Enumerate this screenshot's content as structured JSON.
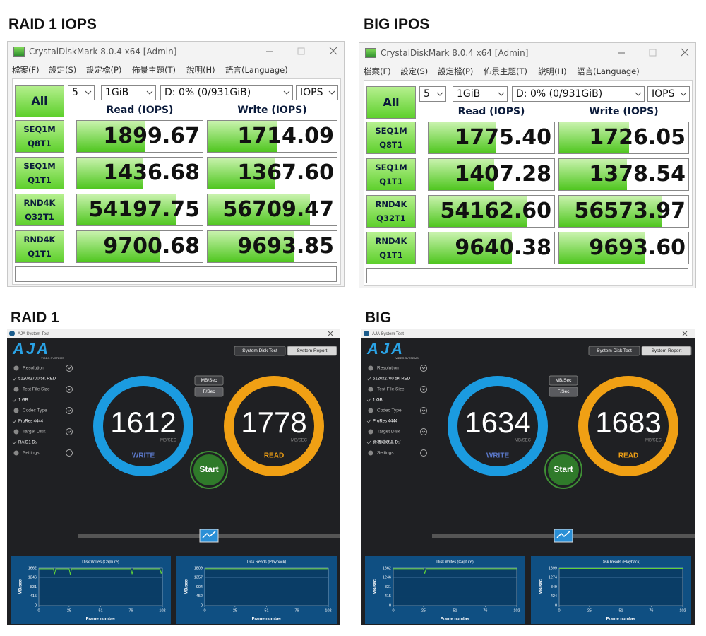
{
  "panels": [
    {
      "label": "RAID 1 IOPS",
      "type": "crystaldiskmark",
      "window": {
        "title": "CrystalDiskMark 8.0.4 x64 [Admin]",
        "menu": [
          "檔案(F)",
          "設定(S)",
          "設定檔(P)",
          "佈景主題(T)",
          "說明(H)",
          "語言(Language)"
        ],
        "all": "All",
        "count": "5",
        "size": "1GiB",
        "drive": "D: 0% (0/931GiB)",
        "unit": "IOPS",
        "read_header": "Read (IOPS)",
        "write_header": "Write (IOPS)",
        "rows": [
          {
            "test": "SEQ1M",
            "params": "Q8T1",
            "read": "1899.67",
            "write": "1714.09"
          },
          {
            "test": "SEQ1M",
            "params": "Q1T1",
            "read": "1436.68",
            "write": "1367.60"
          },
          {
            "test": "RND4K",
            "params": "Q32T1",
            "read": "54197.75",
            "write": "56709.47"
          },
          {
            "test": "RND4K",
            "params": "Q1T1",
            "read": "9700.68",
            "write": "9693.85"
          }
        ]
      }
    },
    {
      "label": "BIG IPOS",
      "type": "crystaldiskmark",
      "window": {
        "title": "CrystalDiskMark 8.0.4 x64 [Admin]",
        "menu": [
          "檔案(F)",
          "設定(S)",
          "設定檔(P)",
          "佈景主題(T)",
          "說明(H)",
          "語言(Language)"
        ],
        "all": "All",
        "count": "5",
        "size": "1GiB",
        "drive": "D: 0% (0/931GiB)",
        "unit": "IOPS",
        "read_header": "Read (IOPS)",
        "write_header": "Write (IOPS)",
        "rows": [
          {
            "test": "SEQ1M",
            "params": "Q8T1",
            "read": "1775.40",
            "write": "1726.05"
          },
          {
            "test": "SEQ1M",
            "params": "Q1T1",
            "read": "1407.28",
            "write": "1378.54"
          },
          {
            "test": "RND4K",
            "params": "Q32T1",
            "read": "54162.60",
            "write": "56573.97"
          },
          {
            "test": "RND4K",
            "params": "Q1T1",
            "read": "9640.38",
            "write": "9693.60"
          }
        ]
      }
    },
    {
      "label": "RAID 1",
      "type": "aja",
      "window": {
        "title": "AJA System Test",
        "logo": "AJA",
        "logo_sub": "VIDEO SYSTEMS",
        "buttons": [
          "System Disk Test",
          "System Report"
        ],
        "settings": [
          {
            "label": "Resolution",
            "value": "5120x2700 5K RED"
          },
          {
            "label": "Test File Size",
            "value": "1 GB"
          },
          {
            "label": "Codec Type",
            "value": "ProRes 4444"
          },
          {
            "label": "Target Disk",
            "value": "RAID1 D:/"
          }
        ],
        "settings_link": "Settings",
        "rate_units": [
          "MB/Sec",
          "F/Sec"
        ],
        "write": {
          "value": "1612",
          "unit": "MB/SEC",
          "label": "WRITE"
        },
        "read": {
          "value": "1778",
          "unit": "MB/SEC",
          "label": "READ"
        },
        "start": "Start",
        "charts": [
          {
            "type": "line",
            "title": "Disk Writes (Capture)",
            "ylabel": "MB/sec",
            "xlabel": "Frame number",
            "xlim": [
              0,
              102
            ],
            "ylim": [
              0,
              1662
            ],
            "xticks": [
              0,
              25,
              51,
              76,
              102
            ],
            "yticks": [
              0,
              415,
              831,
              1246,
              1662
            ],
            "color": "#5fd13a",
            "x": [
              0,
              12,
              13,
              14,
              25,
              26,
              27,
              76,
              77,
              78,
              100,
              101,
              102
            ],
            "values": [
              1630,
              1630,
              1400,
              1630,
              1630,
              1380,
              1630,
              1630,
              1400,
              1630,
              1630,
              1420,
              1630
            ]
          },
          {
            "type": "line",
            "title": "Disk Reads (Playback)",
            "ylabel": "MB/sec",
            "xlabel": "Frame number",
            "xlim": [
              0,
              102
            ],
            "ylim": [
              0,
              1809
            ],
            "xticks": [
              0,
              25,
              51,
              76,
              102
            ],
            "yticks": [
              0,
              452,
              904,
              1357,
              1809
            ],
            "color": "#5fd13a",
            "x": [
              0,
              51,
              102
            ],
            "values": [
              1780,
              1775,
              1780
            ]
          }
        ]
      }
    },
    {
      "label": "BIG",
      "type": "aja",
      "window": {
        "title": "AJA System Test",
        "logo": "AJA",
        "logo_sub": "VIDEO SYSTEMS",
        "buttons": [
          "System Disk Test",
          "System Report"
        ],
        "settings": [
          {
            "label": "Resolution",
            "value": "5120x2700 5K RED"
          },
          {
            "label": "Test File Size",
            "value": "1 GB"
          },
          {
            "label": "Codec Type",
            "value": "ProRes 4444"
          },
          {
            "label": "Target Disk",
            "value": "新增磁碟區 D:/"
          }
        ],
        "settings_link": "Settings",
        "rate_units": [
          "MB/Sec",
          "F/Sec"
        ],
        "write": {
          "value": "1634",
          "unit": "MB/SEC",
          "label": "WRITE"
        },
        "read": {
          "value": "1683",
          "unit": "MB/SEC",
          "label": "READ"
        },
        "start": "Start",
        "charts": [
          {
            "type": "line",
            "title": "Disk Writes (Capture)",
            "ylabel": "MB/sec",
            "xlabel": "Frame number",
            "xlim": [
              0,
              102
            ],
            "ylim": [
              0,
              1662
            ],
            "xticks": [
              0,
              25,
              51,
              76,
              102
            ],
            "yticks": [
              0,
              415,
              831,
              1246,
              1662
            ],
            "color": "#5fd13a",
            "x": [
              0,
              25,
              26,
              27,
              102
            ],
            "values": [
              1634,
              1634,
              1420,
              1634,
              1634
            ]
          },
          {
            "type": "line",
            "title": "Disk Reads (Playback)",
            "ylabel": "MB/sec",
            "xlabel": "Frame number",
            "xlim": [
              0,
              102
            ],
            "ylim": [
              0,
              1699
            ],
            "xticks": [
              0,
              25,
              51,
              76,
              102
            ],
            "yticks": [
              0,
              424,
              849,
              1274,
              1699
            ],
            "color": "#5fd13a",
            "x": [
              0,
              51,
              102
            ],
            "values": [
              1683,
              1683,
              1683
            ]
          }
        ]
      }
    }
  ]
}
